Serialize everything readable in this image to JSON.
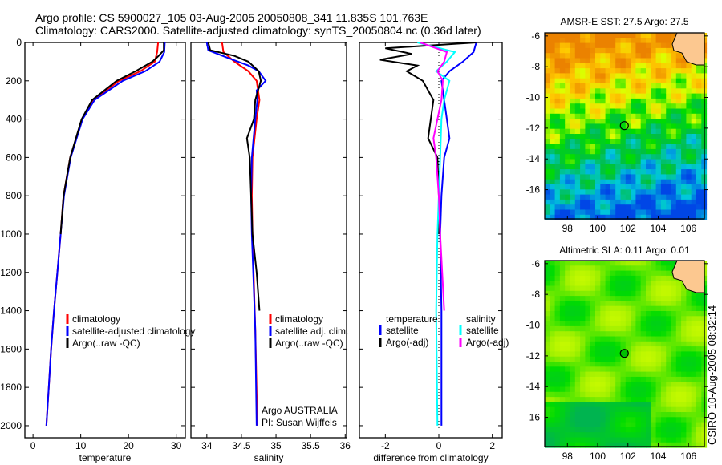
{
  "title_line1": "Argo profile: CS 5900027_105 03-Aug-2005 20050808_341 11.835S 101.763E",
  "title_line2": "Climatology: CARS2000. Satellite-adjusted climatology: synTS_20050804.nc (0.36d later)",
  "stamp": "CSIRO 10-Aug-2005 08:32:14",
  "colors": {
    "clim": "#ff0000",
    "sat": "#0000ff",
    "argo": "#000000",
    "sal_sat": "#00ffff",
    "sal_argo": "#ff00ff"
  },
  "chart_data": [
    {
      "type": "line",
      "xlabel": "temperature",
      "ylabel": "",
      "xlim": [
        -1.7,
        31.9
      ],
      "ylim": [
        0,
        2063
      ],
      "y_reversed": true,
      "xticks": [
        "0",
        "10",
        "20",
        "30"
      ],
      "xtick_values": [
        0,
        10,
        20,
        30
      ],
      "yticks": [
        "0",
        "200",
        "400",
        "600",
        "800",
        "1000",
        "1200",
        "1400",
        "1600",
        "1800",
        "2000"
      ],
      "legend": [
        "climatology",
        "satellite-adjusted climatology",
        "Argo(..raw -QC)"
      ],
      "series": [
        {
          "name": "climatology",
          "depth": [
            0,
            50,
            100,
            150,
            200,
            300,
            400,
            600,
            800,
            1000,
            1200,
            1400,
            1600,
            1800,
            2000
          ],
          "values": [
            26.2,
            26,
            25.5,
            22.5,
            18,
            12.6,
            10.3,
            7.8,
            6.4,
            5.8,
            5.1,
            4.4,
            3.8,
            3.3,
            2.8
          ]
        },
        {
          "name": "satellite-adjusted climatology",
          "depth": [
            0,
            50,
            100,
            150,
            200,
            300,
            400,
            600,
            800,
            1000,
            1200,
            1400,
            1600,
            1800,
            2000
          ],
          "values": [
            27.6,
            27.5,
            26.5,
            23.5,
            18.8,
            12.9,
            10.4,
            7.9,
            6.5,
            5.8,
            5.1,
            4.4,
            3.8,
            3.3,
            2.8
          ]
        },
        {
          "name": "Argo(..raw -QC)",
          "depth": [
            0,
            40,
            70,
            100,
            150,
            200,
            300,
            400,
            600,
            800,
            1000
          ],
          "values": [
            27.4,
            27.4,
            26.3,
            25,
            21.5,
            17.5,
            12.4,
            10.2,
            7.8,
            6.4,
            5.8
          ]
        }
      ]
    },
    {
      "type": "line",
      "xlabel": "salinity",
      "xlim": [
        33.77,
        36.02
      ],
      "ylim": [
        0,
        2063
      ],
      "y_reversed": true,
      "xticks": [
        "34",
        "34.5",
        "35",
        "35.5",
        "36"
      ],
      "xtick_values": [
        34,
        34.5,
        35,
        35.5,
        36
      ],
      "legend": [
        "climatology",
        "satellite adj. clim.",
        "Argo(..raw -QC)"
      ],
      "annotation": [
        "Argo AUSTRALIA",
        "PI: Susan Wijffels"
      ],
      "series": [
        {
          "name": "climatology",
          "depth": [
            0,
            50,
            100,
            150,
            200,
            300,
            400,
            600,
            800,
            1000,
            1500,
            2000
          ],
          "values": [
            34.22,
            34.24,
            34.4,
            34.6,
            34.72,
            34.76,
            34.72,
            34.66,
            34.65,
            34.66,
            34.7,
            34.73
          ]
        },
        {
          "name": "satellite adj. clim.",
          "depth": [
            0,
            40,
            80,
            120,
            150,
            200,
            250,
            300,
            400,
            600,
            800,
            1000,
            1500,
            2000
          ],
          "values": [
            34.0,
            34.02,
            34.3,
            34.6,
            34.75,
            34.85,
            34.72,
            34.73,
            34.7,
            34.65,
            34.64,
            34.65,
            34.7,
            34.72
          ]
        },
        {
          "name": "Argo(..raw -QC)",
          "depth": [
            0,
            40,
            70,
            100,
            150,
            200,
            300,
            400,
            500,
            600,
            800,
            1000,
            1200,
            1400
          ],
          "values": [
            34.02,
            34.05,
            34.4,
            34.6,
            34.75,
            34.78,
            34.7,
            34.68,
            34.58,
            34.62,
            34.64,
            34.66,
            34.72,
            34.76
          ]
        }
      ]
    },
    {
      "type": "line",
      "xlabel": "difference from climatology",
      "xlim": [
        -2.97,
        2.37
      ],
      "ylim": [
        0,
        2063
      ],
      "y_reversed": true,
      "xticks": [
        "-2",
        "0",
        "2"
      ],
      "xtick_values": [
        -2,
        0,
        2
      ],
      "legend_titles": [
        "temperature",
        "salinity"
      ],
      "legend": [
        "satellite",
        "Argo(-adj)",
        "satellite",
        "Argo(-adj)"
      ],
      "series": [
        {
          "name": "temperature satellite",
          "depth": [
            0,
            50,
            100,
            150,
            200,
            300,
            400,
            500,
            600,
            800,
            1000,
            1400,
            2000
          ],
          "values": [
            1.4,
            1.3,
            0.9,
            0.4,
            0.1,
            0.2,
            0.3,
            0.4,
            0.2,
            0.1,
            0.05,
            0.1,
            0.1
          ]
        },
        {
          "name": "temperature Argo(-adj)",
          "depth": [
            0,
            30,
            60,
            90,
            120,
            150,
            200,
            300,
            400,
            500,
            600,
            800,
            1000
          ],
          "values": [
            1.4,
            -2.0,
            -1.0,
            -2.2,
            -0.8,
            -1.2,
            -0.6,
            -0.2,
            -0.3,
            -0.4,
            -0.05,
            0,
            0
          ]
        },
        {
          "name": "salinity satellite",
          "depth": [
            0,
            50,
            100,
            150,
            200,
            300,
            400,
            600,
            800,
            1000,
            1400,
            2000
          ],
          "values": [
            -0.8,
            0.6,
            0.3,
            -0.1,
            0.4,
            0.2,
            0.1,
            0.05,
            0.0,
            -0.05,
            -0.1,
            -0.05
          ]
        },
        {
          "name": "salinity Argo(-adj)",
          "depth": [
            0,
            50,
            100,
            150,
            200,
            300,
            400,
            500,
            600,
            700,
            800,
            1000,
            1400
          ],
          "values": [
            -0.7,
            0.3,
            0.2,
            -0.05,
            0.15,
            0.1,
            -0.05,
            -0.2,
            -0.1,
            -0.05,
            0.0,
            0.05,
            0.2
          ]
        }
      ]
    },
    {
      "type": "heatmap",
      "title": "AMSR-E SST: 27.5 Argo: 27.5",
      "xlim": [
        96.5,
        107.05
      ],
      "ylim": [
        -17.9,
        -5.8
      ],
      "xticks": [
        "98",
        "100",
        "102",
        "104",
        "106"
      ],
      "xtick_values": [
        98,
        100,
        102,
        104,
        106
      ],
      "yticks": [
        "-6",
        "-8",
        "-10",
        "-12",
        "-14",
        "-16"
      ],
      "ytick_values": [
        -6,
        -8,
        -10,
        -12,
        -14,
        -16
      ],
      "marker": {
        "lon": 101.763,
        "lat": -11.835
      }
    },
    {
      "type": "heatmap",
      "title": "Altimetric SLA: 0.11 Argo: 0.01",
      "xlim": [
        96.5,
        107.05
      ],
      "ylim": [
        -17.9,
        -5.8
      ],
      "xticks": [
        "98",
        "100",
        "102",
        "104",
        "106"
      ],
      "xtick_values": [
        98,
        100,
        102,
        104,
        106
      ],
      "yticks": [
        "-6",
        "-8",
        "-10",
        "-12",
        "-14",
        "-16"
      ],
      "ytick_values": [
        -6,
        -8,
        -10,
        -12,
        -14,
        -16
      ],
      "marker": {
        "lon": 101.763,
        "lat": -11.835
      }
    }
  ]
}
